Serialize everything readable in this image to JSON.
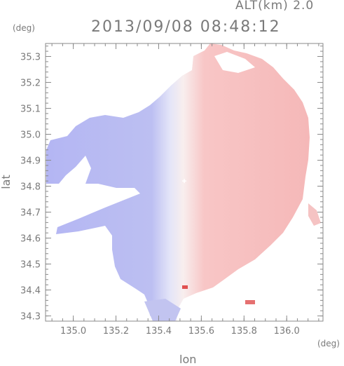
{
  "chart_data": {
    "type": "heatmap",
    "header_right": "ALT(km) 2.0",
    "title": "2013/09/08 08:48:12",
    "xlabel": "lon",
    "ylabel": "lat",
    "x_unit": "(deg)",
    "y_unit": "(deg)",
    "xlim": [
      134.87,
      136.17
    ],
    "ylim": [
      34.28,
      35.35
    ],
    "x_ticks": [
      135.0,
      135.2,
      135.4,
      135.6,
      135.8,
      136.0
    ],
    "x_tick_labels": [
      "135.0",
      "135.2",
      "135.4",
      "135.6",
      "135.8",
      "136.0"
    ],
    "y_ticks": [
      34.3,
      34.4,
      34.5,
      34.6,
      34.7,
      34.8,
      34.9,
      35.0,
      35.1,
      35.2,
      35.3
    ],
    "y_tick_labels": [
      "34.3",
      "34.4",
      "34.5",
      "34.6",
      "34.7",
      "34.8",
      "34.9",
      "35.0",
      "35.1",
      "35.2",
      "35.3"
    ],
    "radar_center": {
      "lon": 135.52,
      "lat": 34.82
    },
    "colors": {
      "negative": "#b8baf2",
      "positive": "#f4b6b6",
      "zero": "#f6f6fc",
      "frame": "#8a8a8a"
    },
    "grid": false,
    "legend": "none"
  }
}
